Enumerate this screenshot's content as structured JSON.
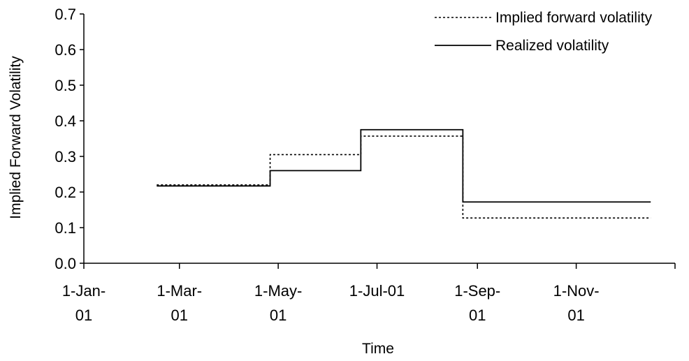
{
  "chart_data": {
    "type": "line",
    "step": true,
    "xlabel": "Time",
    "ylabel": "Implied Forward Volatility",
    "ylim": [
      0,
      0.7
    ],
    "y_ticks": [
      "0.0",
      "0.1",
      "0.2",
      "0.3",
      "0.4",
      "0.5",
      "0.6",
      "0.7"
    ],
    "x_axis_range": [
      "2001-01-01",
      "2002-01-01"
    ],
    "x_ticks": [
      {
        "date": "2001-01-01",
        "lines": [
          "1-Jan-",
          "01"
        ]
      },
      {
        "date": "2001-03-01",
        "lines": [
          "1-Mar-",
          "01"
        ]
      },
      {
        "date": "2001-05-01",
        "lines": [
          "1-May-",
          "01"
        ]
      },
      {
        "date": "2001-07-01",
        "lines": [
          "1-Jul-01"
        ]
      },
      {
        "date": "2001-09-01",
        "lines": [
          "1-Sep-",
          "01"
        ]
      },
      {
        "date": "2001-11-01",
        "lines": [
          "1-Nov-",
          "01"
        ]
      }
    ],
    "grid": false,
    "legend_position": "top-right",
    "series": [
      {
        "name": "Implied forward volatility",
        "style": "dotted",
        "color": "#000000",
        "steps": [
          {
            "start": "2001-02-15",
            "end": "2001-04-26",
            "value": 0.22
          },
          {
            "start": "2001-04-26",
            "end": "2001-06-21",
            "value": 0.305
          },
          {
            "start": "2001-06-21",
            "end": "2001-08-23",
            "value": 0.357
          },
          {
            "start": "2001-08-23",
            "end": "2001-12-17",
            "value": 0.127
          }
        ]
      },
      {
        "name": "Realized volatility",
        "style": "solid",
        "color": "#000000",
        "steps": [
          {
            "start": "2001-02-15",
            "end": "2001-04-26",
            "value": 0.217
          },
          {
            "start": "2001-04-26",
            "end": "2001-06-21",
            "value": 0.26
          },
          {
            "start": "2001-06-21",
            "end": "2001-08-23",
            "value": 0.375
          },
          {
            "start": "2001-08-23",
            "end": "2001-12-17",
            "value": 0.172
          }
        ]
      }
    ]
  }
}
